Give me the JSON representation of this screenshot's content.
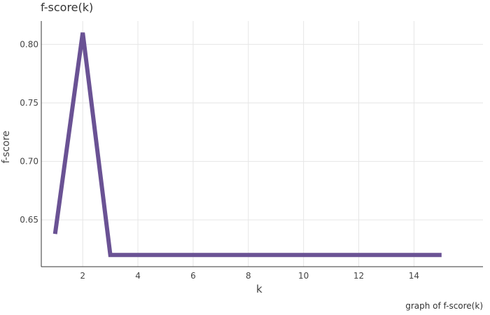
{
  "chart_data": {
    "type": "line",
    "title": "f-score(k)",
    "xlabel": "k",
    "ylabel": "f-score",
    "caption": "graph of f-score(k)",
    "x": [
      1,
      2,
      3,
      4,
      5,
      6,
      7,
      8,
      9,
      10,
      11,
      12,
      13,
      14,
      15
    ],
    "series": [
      {
        "values": [
          0.638,
          0.81,
          0.62,
          0.62,
          0.62,
          0.62,
          0.62,
          0.62,
          0.62,
          0.62,
          0.62,
          0.62,
          0.62,
          0.62,
          0.62
        ],
        "color": "#6a5294"
      }
    ],
    "xlim": [
      0.5,
      16.5
    ],
    "ylim": [
      0.61,
      0.82
    ],
    "xticks": [
      2,
      4,
      6,
      8,
      10,
      12,
      14
    ],
    "yticks": [
      0.65,
      0.7,
      0.75,
      0.8
    ],
    "ytick_labels": [
      "0.65",
      "0.70",
      "0.75",
      "0.80"
    ],
    "grid": true,
    "grid_color": "#e6e6e6",
    "axis_color": "#333333"
  }
}
